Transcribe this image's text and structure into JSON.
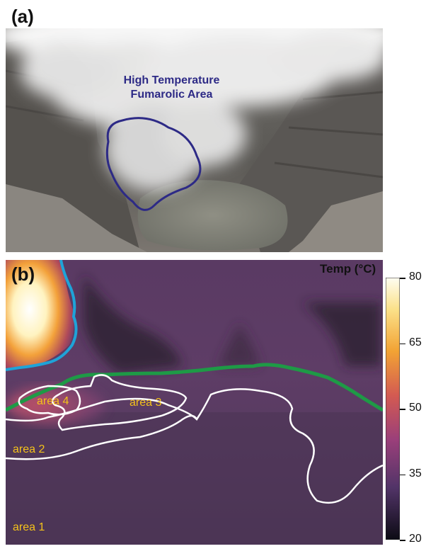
{
  "panels": {
    "a": {
      "label": "(a)",
      "annotation_line1": "High Temperature",
      "annotation_line2": "Fumarolic Area",
      "annotation_color": "#2d2a86"
    },
    "b": {
      "label": "(b)",
      "areas": [
        "area 4",
        "area 3",
        "area 2",
        "area 1"
      ],
      "area_label_color": "#f4c21a",
      "boundary_color_green": "#1e9a46",
      "boundary_color_blue": "#1fa3d8",
      "contour_color": "#ffffff"
    }
  },
  "colorbar": {
    "title": "Temp (°C)",
    "min": 20,
    "max": 80,
    "ticks": [
      "80",
      "65",
      "50",
      "35",
      "20"
    ]
  }
}
